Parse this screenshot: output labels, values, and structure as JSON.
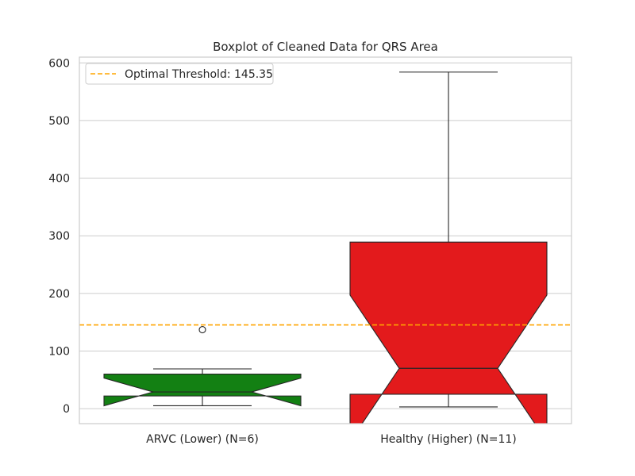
{
  "chart_data": {
    "type": "boxplot",
    "title": "Boxplot of Cleaned Data for QRS Area",
    "xlabel": "",
    "ylabel": "",
    "ylim": [
      -26,
      610
    ],
    "yticks": [
      0,
      100,
      200,
      300,
      400,
      500,
      600
    ],
    "grid": true,
    "notched": true,
    "legend": {
      "placement": "top-left",
      "entries": [
        "Optimal Threshold: 145.35"
      ]
    },
    "threshold": {
      "label": "Optimal Threshold: 145.35",
      "value": 145.35,
      "color": "#FFA500",
      "style": "dashed"
    },
    "categories": [
      "ARVC (Lower) (N=6)",
      "Healthy (Higher) (N=11)"
    ],
    "boxes": [
      {
        "category": "ARVC (Lower) (N=6)",
        "color": "#138013",
        "whisker_low": 5,
        "q1": 22,
        "median": 29,
        "q3": 60,
        "whisker_high": 69,
        "notch_low": 5,
        "notch_high": 53,
        "outliers": [
          137
        ]
      },
      {
        "category": "Healthy (Higher) (N=11)",
        "color": "#E31A1C",
        "whisker_low": 3,
        "q1": 25,
        "median": 70,
        "q3": 289,
        "whisker_high": 584,
        "notch_low": -57,
        "notch_high": 197,
        "outliers": []
      }
    ]
  }
}
